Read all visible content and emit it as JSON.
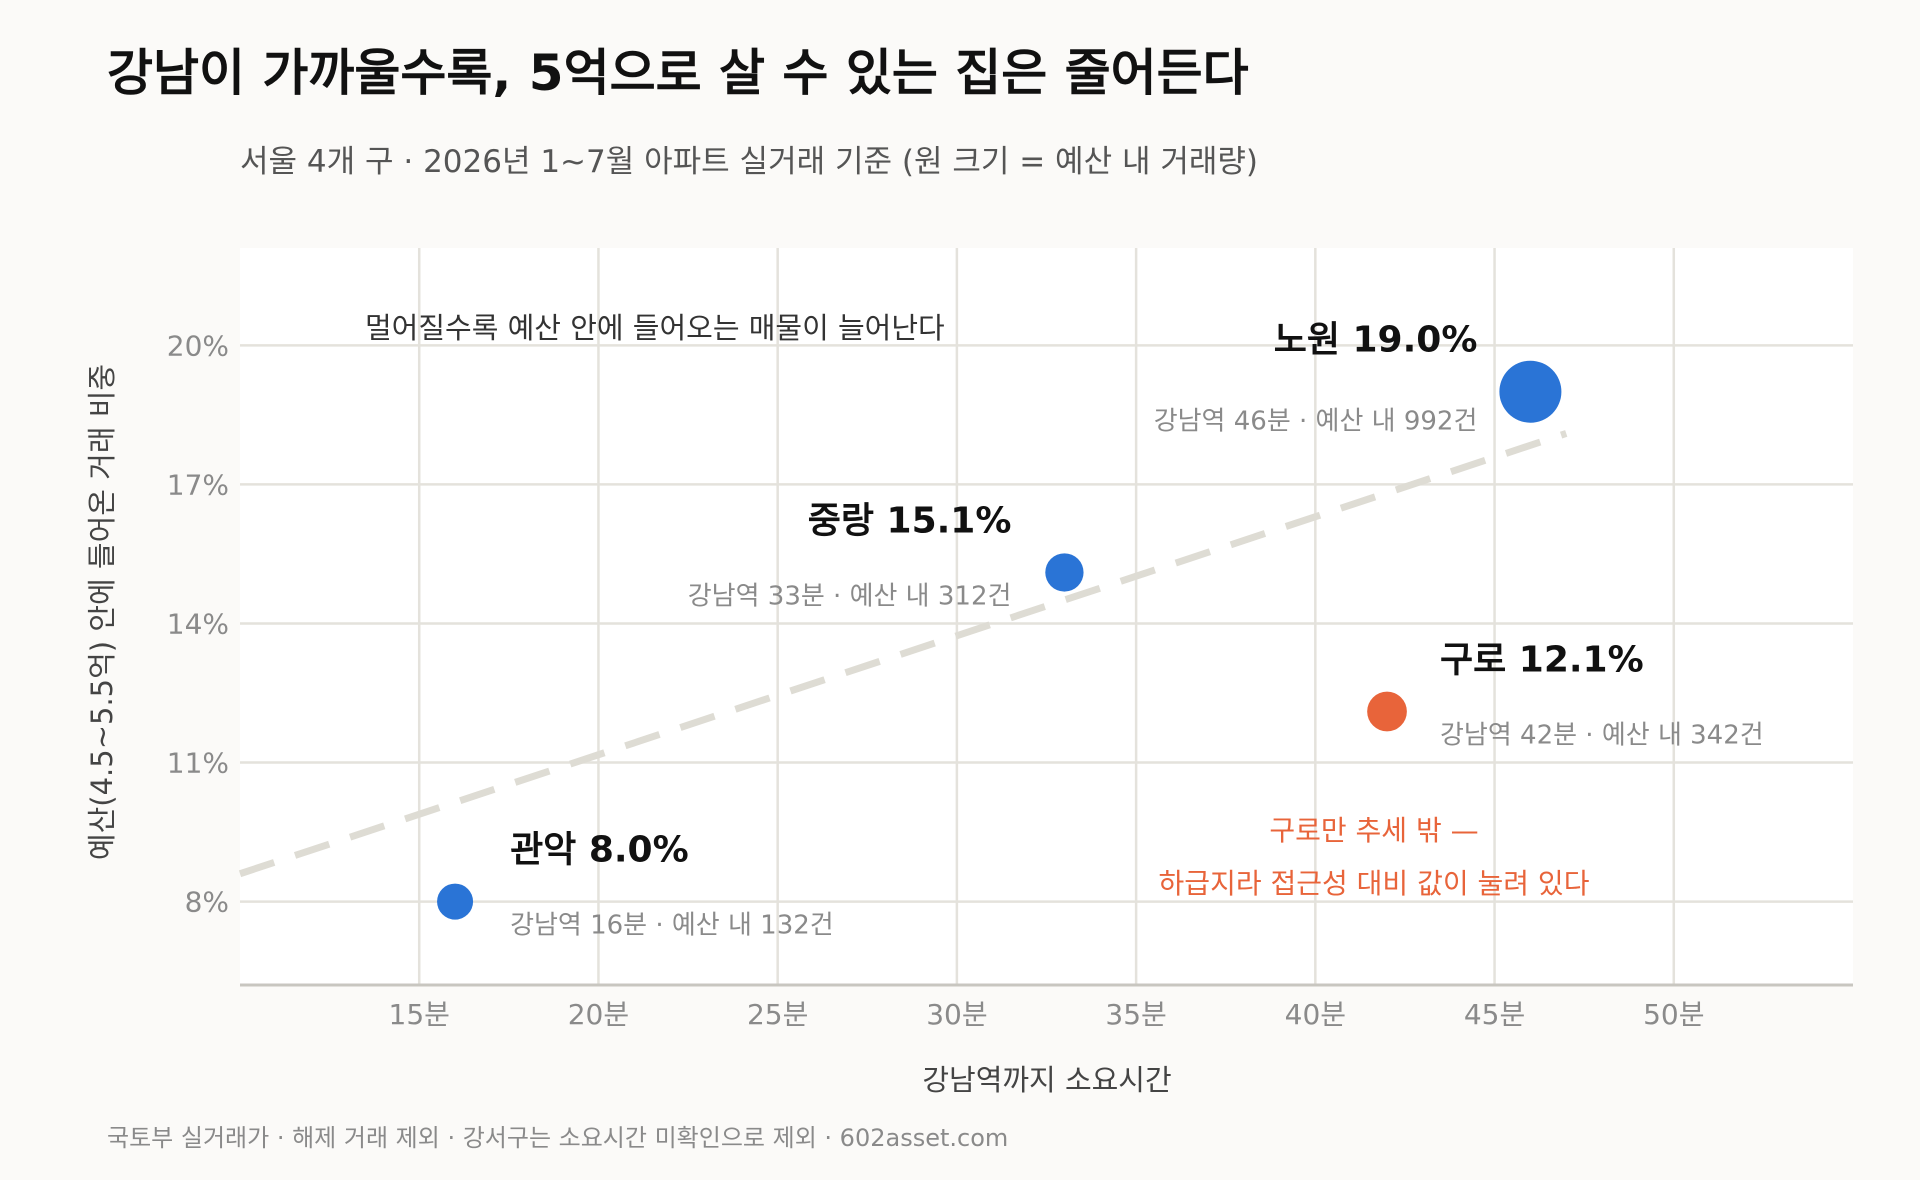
{
  "title": "강남이 가까울수록, 5억으로 살 수 있는 집은 줄어든다",
  "subtitle": "서울 4개 구 · 2026년 1~7월 아파트 실거래 기준 (원 크기 = 예산 내 거래량)",
  "footer": "국토부 실거래가 · 해제 거래 제외 · 강서구는 소요시간 미확인으로 제외 · 602asset.com",
  "annotation_top": "멀어질수록 예산 안에 들어오는 매물이 늘어난다",
  "annotation_outlier": [
    "구로만 추세 밖 —",
    "하급지라 접근성 대비 값이 눌려 있다"
  ],
  "colors": {
    "blue": "#2a74d6",
    "orange": "#e8643a",
    "grid": "#e4e2dc",
    "trend": "#dedcd4",
    "axis": "#c8c6c0"
  },
  "chart_data": {
    "type": "scatter",
    "xlabel": "강남역까지 소요시간",
    "ylabel": "예산(4.5~5.5억) 안에 들어온 거래 비중",
    "xlim": [
      10,
      55
    ],
    "ylim": [
      6.2,
      22.1
    ],
    "x_ticks": [
      15,
      20,
      25,
      30,
      35,
      40,
      45,
      50
    ],
    "x_tick_labels": [
      "15분",
      "20분",
      "25분",
      "30분",
      "35분",
      "40분",
      "45분",
      "50분"
    ],
    "y_ticks": [
      8,
      11,
      14,
      17,
      20
    ],
    "y_tick_labels": [
      "8%",
      "11%",
      "14%",
      "17%",
      "20%"
    ],
    "grid": true,
    "size_encoding": "예산 내 거래량",
    "points": [
      {
        "name": "관악",
        "label": "관악  8.0%",
        "sublabel": "강남역 16분 · 예산 내 132건",
        "x": 16,
        "y": 8.0,
        "count": 132,
        "color": "#2a74d6"
      },
      {
        "name": "중랑",
        "label": "중랑  15.1%",
        "sublabel": "강남역 33분 · 예산 내 312건",
        "x": 33,
        "y": 15.1,
        "count": 312,
        "color": "#2a74d6"
      },
      {
        "name": "구로",
        "label": "구로  12.1%",
        "sublabel": "강남역 42분 · 예산 내 342건",
        "x": 42,
        "y": 12.1,
        "count": 342,
        "color": "#e8643a"
      },
      {
        "name": "노원",
        "label": "노원  19.0%",
        "sublabel": "강남역 46분 · 예산 내 992건",
        "x": 46,
        "y": 19.0,
        "count": 992,
        "color": "#2a74d6"
      }
    ],
    "trend_line": {
      "x": [
        10,
        47
      ],
      "y": [
        8.6,
        18.1
      ]
    }
  }
}
